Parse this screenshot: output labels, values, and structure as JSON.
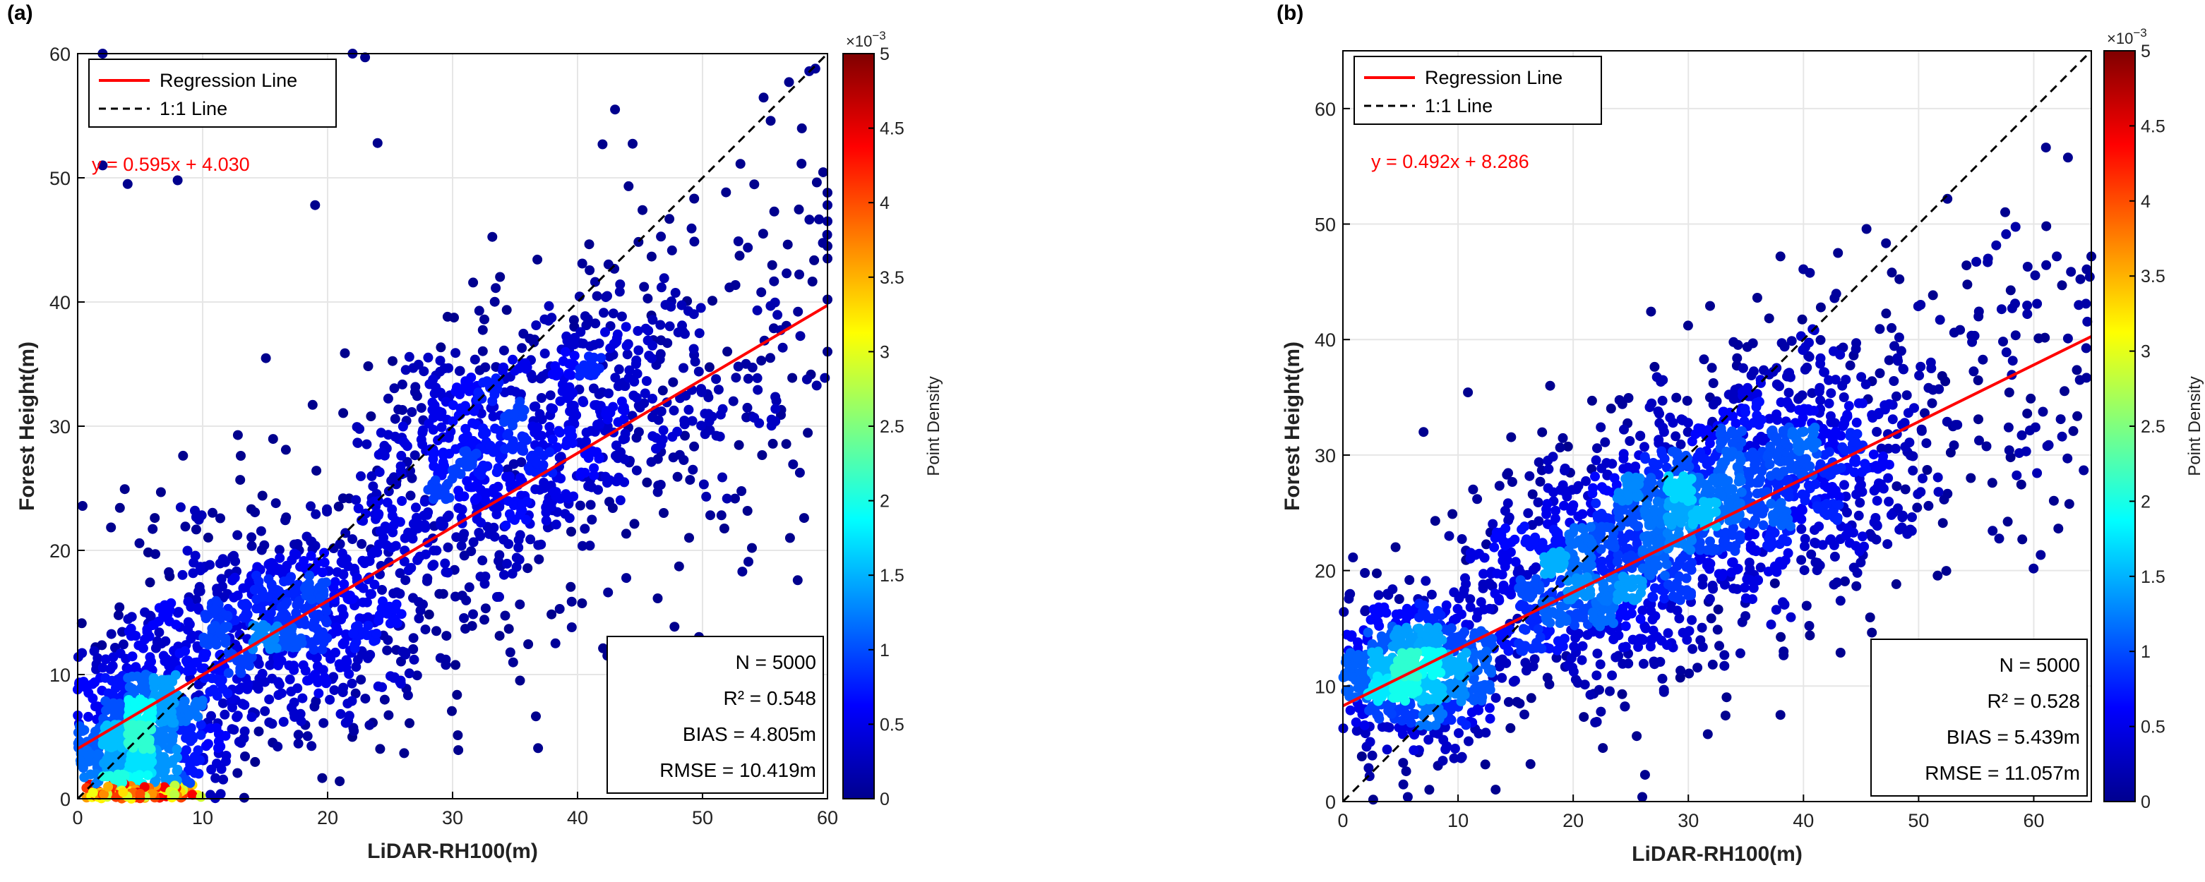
{
  "colors": {
    "regression": "#ff0000",
    "one_to_one": "#000000",
    "equation": "#ff0000",
    "grid": "#e6e6e6",
    "colormap": "jet"
  },
  "colorbar_exponent": "×10",
  "colorbar_exponent_power": "−3",
  "chart_data": [
    {
      "type": "scatter",
      "panel": "(a)",
      "xlabel": "LiDAR-RH100(m)",
      "ylabel": "Forest Height(m)",
      "xlim": [
        0,
        60
      ],
      "ylim": [
        0,
        60
      ],
      "xticks": [
        0,
        10,
        20,
        30,
        40,
        50,
        60
      ],
      "yticks": [
        0,
        10,
        20,
        30,
        40,
        50,
        60
      ],
      "grid": true,
      "legend_position": "top-left",
      "legend": [
        "Regression Line",
        "1:1 Line"
      ],
      "equation": "y = 0.595x + 4.030",
      "regression": {
        "slope": 0.595,
        "intercept": 4.03
      },
      "stats": [
        "N = 5000",
        "R² = 0.548",
        "BIAS = 4.805m",
        "RMSE = 10.419m"
      ],
      "colorbar": {
        "label": "Point Density",
        "range": [
          0,
          5
        ],
        "ticks": [
          "0",
          "0.5",
          "1",
          "1.5",
          "2",
          "2.5",
          "3",
          "3.5",
          "4",
          "4.5",
          "5"
        ]
      },
      "clusters": [
        {
          "x": 5,
          "y": 5,
          "sx": 3,
          "sy": 3.5,
          "weight": 0.32
        },
        {
          "x": 13,
          "y": 13,
          "sx": 4,
          "sy": 4,
          "weight": 0.16
        },
        {
          "x": 21,
          "y": 15,
          "sx": 4,
          "sy": 4,
          "weight": 0.14
        },
        {
          "x": 32,
          "y": 27,
          "sx": 4.5,
          "sy": 5,
          "weight": 0.22
        },
        {
          "x": 42,
          "y": 33,
          "sx": 5,
          "sy": 5,
          "weight": 0.12
        },
        {
          "x": 4,
          "y": 0.3,
          "sx": 3,
          "sy": 0.3,
          "weight": 0.04
        }
      ],
      "notable_points": [
        {
          "x": 2,
          "y": 60
        },
        {
          "x": 19,
          "y": 59.2
        },
        {
          "x": 22,
          "y": 60
        },
        {
          "x": 23,
          "y": 59.7
        },
        {
          "x": 24,
          "y": 52.8
        },
        {
          "x": 2,
          "y": 51
        },
        {
          "x": 4,
          "y": 49.5
        },
        {
          "x": 8,
          "y": 49.8
        },
        {
          "x": 19,
          "y": 47.8
        },
        {
          "x": 43,
          "y": 55.5
        },
        {
          "x": 42,
          "y": 52.7
        },
        {
          "x": 60,
          "y": 48.8
        },
        {
          "x": 60,
          "y": 47.8
        },
        {
          "x": 60,
          "y": 46.5
        },
        {
          "x": 60,
          "y": 44.5
        },
        {
          "x": 60,
          "y": 43.5
        },
        {
          "x": 60,
          "y": 40.2
        },
        {
          "x": 60,
          "y": 36
        },
        {
          "x": 57,
          "y": 21
        },
        {
          "x": 5,
          "y": 0.4
        }
      ]
    },
    {
      "type": "scatter",
      "panel": "(b)",
      "xlabel": "LiDAR-RH100(m)",
      "ylabel": "Forest Height(m)",
      "xlim": [
        0,
        65
      ],
      "ylim": [
        0,
        65
      ],
      "xticks": [
        0,
        10,
        20,
        30,
        40,
        50,
        60
      ],
      "yticks": [
        0,
        10,
        20,
        30,
        40,
        50,
        60
      ],
      "grid": true,
      "legend_position": "top-left",
      "legend": [
        "Regression Line",
        "1:1 Line"
      ],
      "equation": "y = 0.492x + 8.286",
      "regression": {
        "slope": 0.492,
        "intercept": 8.286
      },
      "stats": [
        "N = 5000",
        "R² = 0.528",
        "BIAS = 5.439m",
        "RMSE = 11.057m"
      ],
      "colorbar": {
        "label": "Point Density",
        "range": [
          0,
          5
        ],
        "ticks": [
          "0",
          "0.5",
          "1",
          "1.5",
          "2",
          "2.5",
          "3",
          "3.5",
          "4",
          "4.5",
          "5"
        ]
      },
      "clusters": [
        {
          "x": 6,
          "y": 11,
          "sx": 4,
          "sy": 3,
          "weight": 0.3
        },
        {
          "x": 20,
          "y": 19,
          "sx": 5,
          "sy": 4,
          "weight": 0.22
        },
        {
          "x": 30,
          "y": 25,
          "sx": 5,
          "sy": 4.5,
          "weight": 0.26
        },
        {
          "x": 40,
          "y": 30,
          "sx": 6,
          "sy": 5,
          "weight": 0.22
        }
      ],
      "notable_points": [
        {
          "x": 38,
          "y": 47.2
        },
        {
          "x": 43,
          "y": 47.5
        },
        {
          "x": 56,
          "y": 46.7
        },
        {
          "x": 62,
          "y": 47.2
        },
        {
          "x": 65,
          "y": 47.2
        },
        {
          "x": 64,
          "y": 36.5
        },
        {
          "x": 59,
          "y": 22.7
        },
        {
          "x": 49,
          "y": 8
        },
        {
          "x": 38,
          "y": 7.5
        },
        {
          "x": 26,
          "y": 0.4
        },
        {
          "x": 7,
          "y": 32
        },
        {
          "x": 18,
          "y": 36
        }
      ]
    }
  ]
}
